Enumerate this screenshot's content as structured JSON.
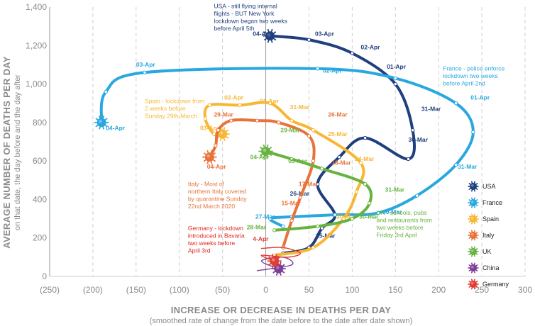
{
  "chart_data": {
    "type": "line",
    "xlabel": "INCREASE OR DECREASE IN DEATHS PER DAY",
    "xlabel_sub": "(smoothed rate of change from the date before to the date after date shown)",
    "ylabel": "AVERAGE NUMBER OF DEATHS PER DAY",
    "ylabel_sub": "on that date, the day before and the day after",
    "xlim": [
      -250,
      300
    ],
    "ylim": [
      0,
      1400
    ],
    "x_ticks": [
      -250,
      -200,
      -150,
      -100,
      -50,
      0,
      50,
      100,
      150,
      200,
      250,
      300
    ],
    "x_tick_labels": [
      "(250)",
      "(200)",
      "(150)",
      "(100)",
      "(50)",
      "0",
      "50",
      "100",
      "150",
      "200",
      "250",
      "300"
    ],
    "y_ticks": [
      0,
      200,
      400,
      600,
      800,
      1000,
      1200,
      1400
    ],
    "y_tick_labels": [
      "0",
      "200",
      "400",
      "600",
      "800",
      "1,000",
      "1,200",
      "1,400"
    ],
    "grid": "vertical dashed",
    "legend_position": "right",
    "series": [
      {
        "name": "USA",
        "color": "#1f3f7f",
        "points": [
          [
            20,
            120
          ],
          [
            50,
            150
          ],
          [
            65,
            250
          ],
          [
            80,
            320
          ],
          [
            60,
            480
          ],
          [
            85,
            620
          ],
          [
            115,
            720
          ],
          [
            165,
            610
          ],
          [
            170,
            760
          ],
          [
            150,
            1000
          ],
          [
            100,
            1160
          ],
          [
            50,
            1230
          ],
          [
            5,
            1250
          ]
        ],
        "labels": [
          {
            "text": "25-Mar",
            "x": 58,
            "y": 200
          },
          {
            "text": "26-Mar",
            "x": 28,
            "y": 420
          },
          {
            "text": "30-Mar",
            "x": 165,
            "y": 700
          },
          {
            "text": "31-Mar",
            "x": 180,
            "y": 860
          },
          {
            "text": "01-Apr",
            "x": 140,
            "y": 1080
          },
          {
            "text": "02-Apr",
            "x": 110,
            "y": 1180
          },
          {
            "text": "03-Apr",
            "x": 57,
            "y": 1250
          },
          {
            "text": "04-Apr",
            "x": -15,
            "y": 1250
          }
        ]
      },
      {
        "name": "France",
        "color": "#29a8e0",
        "points": [
          [
            20,
            260
          ],
          [
            5,
            300
          ],
          [
            30,
            310
          ],
          [
            80,
            320
          ],
          [
            130,
            330
          ],
          [
            175,
            420
          ],
          [
            220,
            580
          ],
          [
            240,
            750
          ],
          [
            220,
            900
          ],
          [
            150,
            1030
          ],
          [
            60,
            1080
          ],
          [
            -140,
            1060
          ],
          [
            -185,
            960
          ],
          [
            -190,
            800
          ]
        ],
        "labels": [
          {
            "text": "27-Mar",
            "x": -12,
            "y": 300
          },
          {
            "text": "30-Mar",
            "x": 135,
            "y": 325
          },
          {
            "text": "31-Mar",
            "x": 222,
            "y": 560
          },
          {
            "text": "01-Apr",
            "x": 237,
            "y": 920
          },
          {
            "text": "02-Apr",
            "x": 66,
            "y": 1060
          },
          {
            "text": "03-Apr",
            "x": -150,
            "y": 1090
          },
          {
            "text": "04-Apr",
            "x": -185,
            "y": 760
          }
        ]
      },
      {
        "name": "Spain",
        "color": "#f7b733",
        "points": [
          [
            10,
            110
          ],
          [
            55,
            150
          ],
          [
            90,
            300
          ],
          [
            105,
            440
          ],
          [
            110,
            590
          ],
          [
            55,
            760
          ],
          [
            30,
            810
          ],
          [
            5,
            900
          ],
          [
            -30,
            890
          ],
          [
            -65,
            890
          ],
          [
            -70,
            820
          ],
          [
            -60,
            740
          ],
          [
            -50,
            740
          ]
        ],
        "labels": [
          {
            "text": "20-Mar",
            "x": 82,
            "y": 300
          },
          {
            "text": "24-Mar",
            "x": 103,
            "y": 600
          },
          {
            "text": "25-Mar",
            "x": 72,
            "y": 730
          },
          {
            "text": "31-Mar",
            "x": 28,
            "y": 870
          },
          {
            "text": "01-Apr",
            "x": -7,
            "y": 900
          },
          {
            "text": "02-Apr",
            "x": -48,
            "y": 920
          },
          {
            "text": "03-Apr",
            "x": -76,
            "y": 760
          }
        ]
      },
      {
        "name": "Italy",
        "color": "#e8733a",
        "points": [
          [
            20,
            150
          ],
          [
            30,
            290
          ],
          [
            40,
            410
          ],
          [
            55,
            600
          ],
          [
            50,
            730
          ],
          [
            15,
            800
          ],
          [
            -10,
            810
          ],
          [
            -40,
            810
          ],
          [
            -55,
            760
          ],
          [
            -58,
            680
          ],
          [
            -65,
            620
          ]
        ],
        "labels": [
          {
            "text": "15-Mar",
            "x": 18,
            "y": 370
          },
          {
            "text": "17-Mar",
            "x": 38,
            "y": 470
          },
          {
            "text": "18-Mar",
            "x": 76,
            "y": 580
          },
          {
            "text": "26-Mar",
            "x": 72,
            "y": 830
          },
          {
            "text": "29-Mar",
            "x": -60,
            "y": 830
          },
          {
            "text": "04-Apr",
            "x": -68,
            "y": 560
          }
        ]
      },
      {
        "name": "UK",
        "color": "#67b33f",
        "points": [
          [
            10,
            240
          ],
          [
            60,
            260
          ],
          [
            100,
            300
          ],
          [
            120,
            380
          ],
          [
            115,
            480
          ],
          [
            65,
            560
          ],
          [
            30,
            610
          ],
          [
            0,
            650
          ]
        ],
        "labels": [
          {
            "text": "28-Mar",
            "x": -22,
            "y": 245
          },
          {
            "text": "30-Mar",
            "x": 108,
            "y": 300
          },
          {
            "text": "31-Mar",
            "x": 138,
            "y": 440
          },
          {
            "text": "29-Mar",
            "x": 17,
            "y": 750
          },
          {
            "text": "03-Apr",
            "x": 26,
            "y": 590
          },
          {
            "text": "04-Apr",
            "x": -18,
            "y": 610
          }
        ]
      },
      {
        "name": "China",
        "color": "#7d3f98",
        "points": [
          [
            -10,
            30
          ],
          [
            30,
            60
          ],
          [
            20,
            100
          ],
          [
            -5,
            80
          ],
          [
            15,
            40
          ]
        ],
        "labels": []
      },
      {
        "name": "Germany",
        "color": "#e23c35",
        "points": [
          [
            -5,
            145
          ],
          [
            20,
            150
          ],
          [
            40,
            120
          ],
          [
            25,
            100
          ],
          [
            -5,
            110
          ],
          [
            10,
            80
          ]
        ],
        "labels": [
          {
            "text": "4-Apr",
            "x": -15,
            "y": 185
          }
        ]
      }
    ],
    "annotations": [
      {
        "lines": [
          "USA - still flying internal",
          "flights - BUT New York",
          "lockdown began two weeks",
          "before April 5th"
        ],
        "color": "#1f3f7f",
        "x": -60,
        "y": 1395,
        "align": "left"
      },
      {
        "lines": [
          "France - police enforce",
          "lockdown two weeks",
          "before April 2nd"
        ],
        "color": "#29a8e0",
        "x": 205,
        "y": 1070,
        "align": "left"
      },
      {
        "lines": [
          "Spain - lockdown from",
          "2 weeks before",
          "Sunday 29th March."
        ],
        "color": "#f7b733",
        "x": -140,
        "y": 900,
        "align": "left"
      },
      {
        "lines": [
          "Italy - Most of",
          "northern Italy covered",
          "by quarantine Sunday",
          "22nd March 2020"
        ],
        "color": "#e8733a",
        "x": -90,
        "y": 470,
        "align": "left"
      },
      {
        "lines": [
          "UK - schools, pubs",
          "and restaurants from",
          "two weeks before",
          "Friday 3rd April"
        ],
        "color": "#67b33f",
        "x": 128,
        "y": 320,
        "align": "left"
      },
      {
        "lines": [
          "Germany - lockdown",
          "introduced in Bavaria",
          "two weeks before",
          "April 3rd"
        ],
        "color": "#e2231a",
        "x": -90,
        "y": 240,
        "align": "left"
      }
    ]
  }
}
